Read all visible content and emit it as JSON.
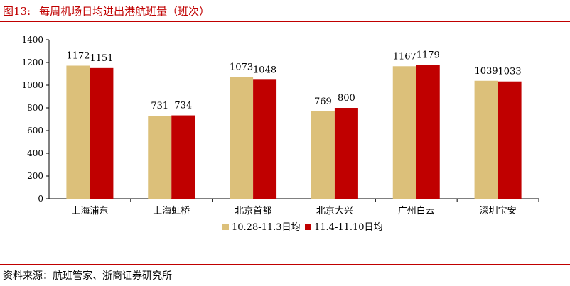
{
  "header": {
    "figure_label": "图13:",
    "title": "每周机场日均进出港航班量（班次）"
  },
  "footer": {
    "source": "资料来源：航班管家、浙商证券研究所"
  },
  "chart_data": {
    "type": "bar",
    "title": "每周机场日均进出港航班量（班次）",
    "xlabel": "",
    "ylabel": "",
    "ylim": [
      0,
      1400
    ],
    "yticks": [
      0,
      200,
      400,
      600,
      800,
      1000,
      1200,
      1400
    ],
    "grid": false,
    "legend_position": "bottom",
    "categories": [
      "上海浦东",
      "上海虹桥",
      "北京首都",
      "北京大兴",
      "广州白云",
      "深圳宝安"
    ],
    "series": [
      {
        "name": "10.28-11.3日均",
        "color": "#dcc07a",
        "values": [
          1172,
          731,
          1073,
          769,
          1167,
          1039
        ]
      },
      {
        "name": "11.4-11.10日均",
        "color": "#c00000",
        "values": [
          1151,
          734,
          1048,
          800,
          1179,
          1033
        ]
      }
    ]
  }
}
